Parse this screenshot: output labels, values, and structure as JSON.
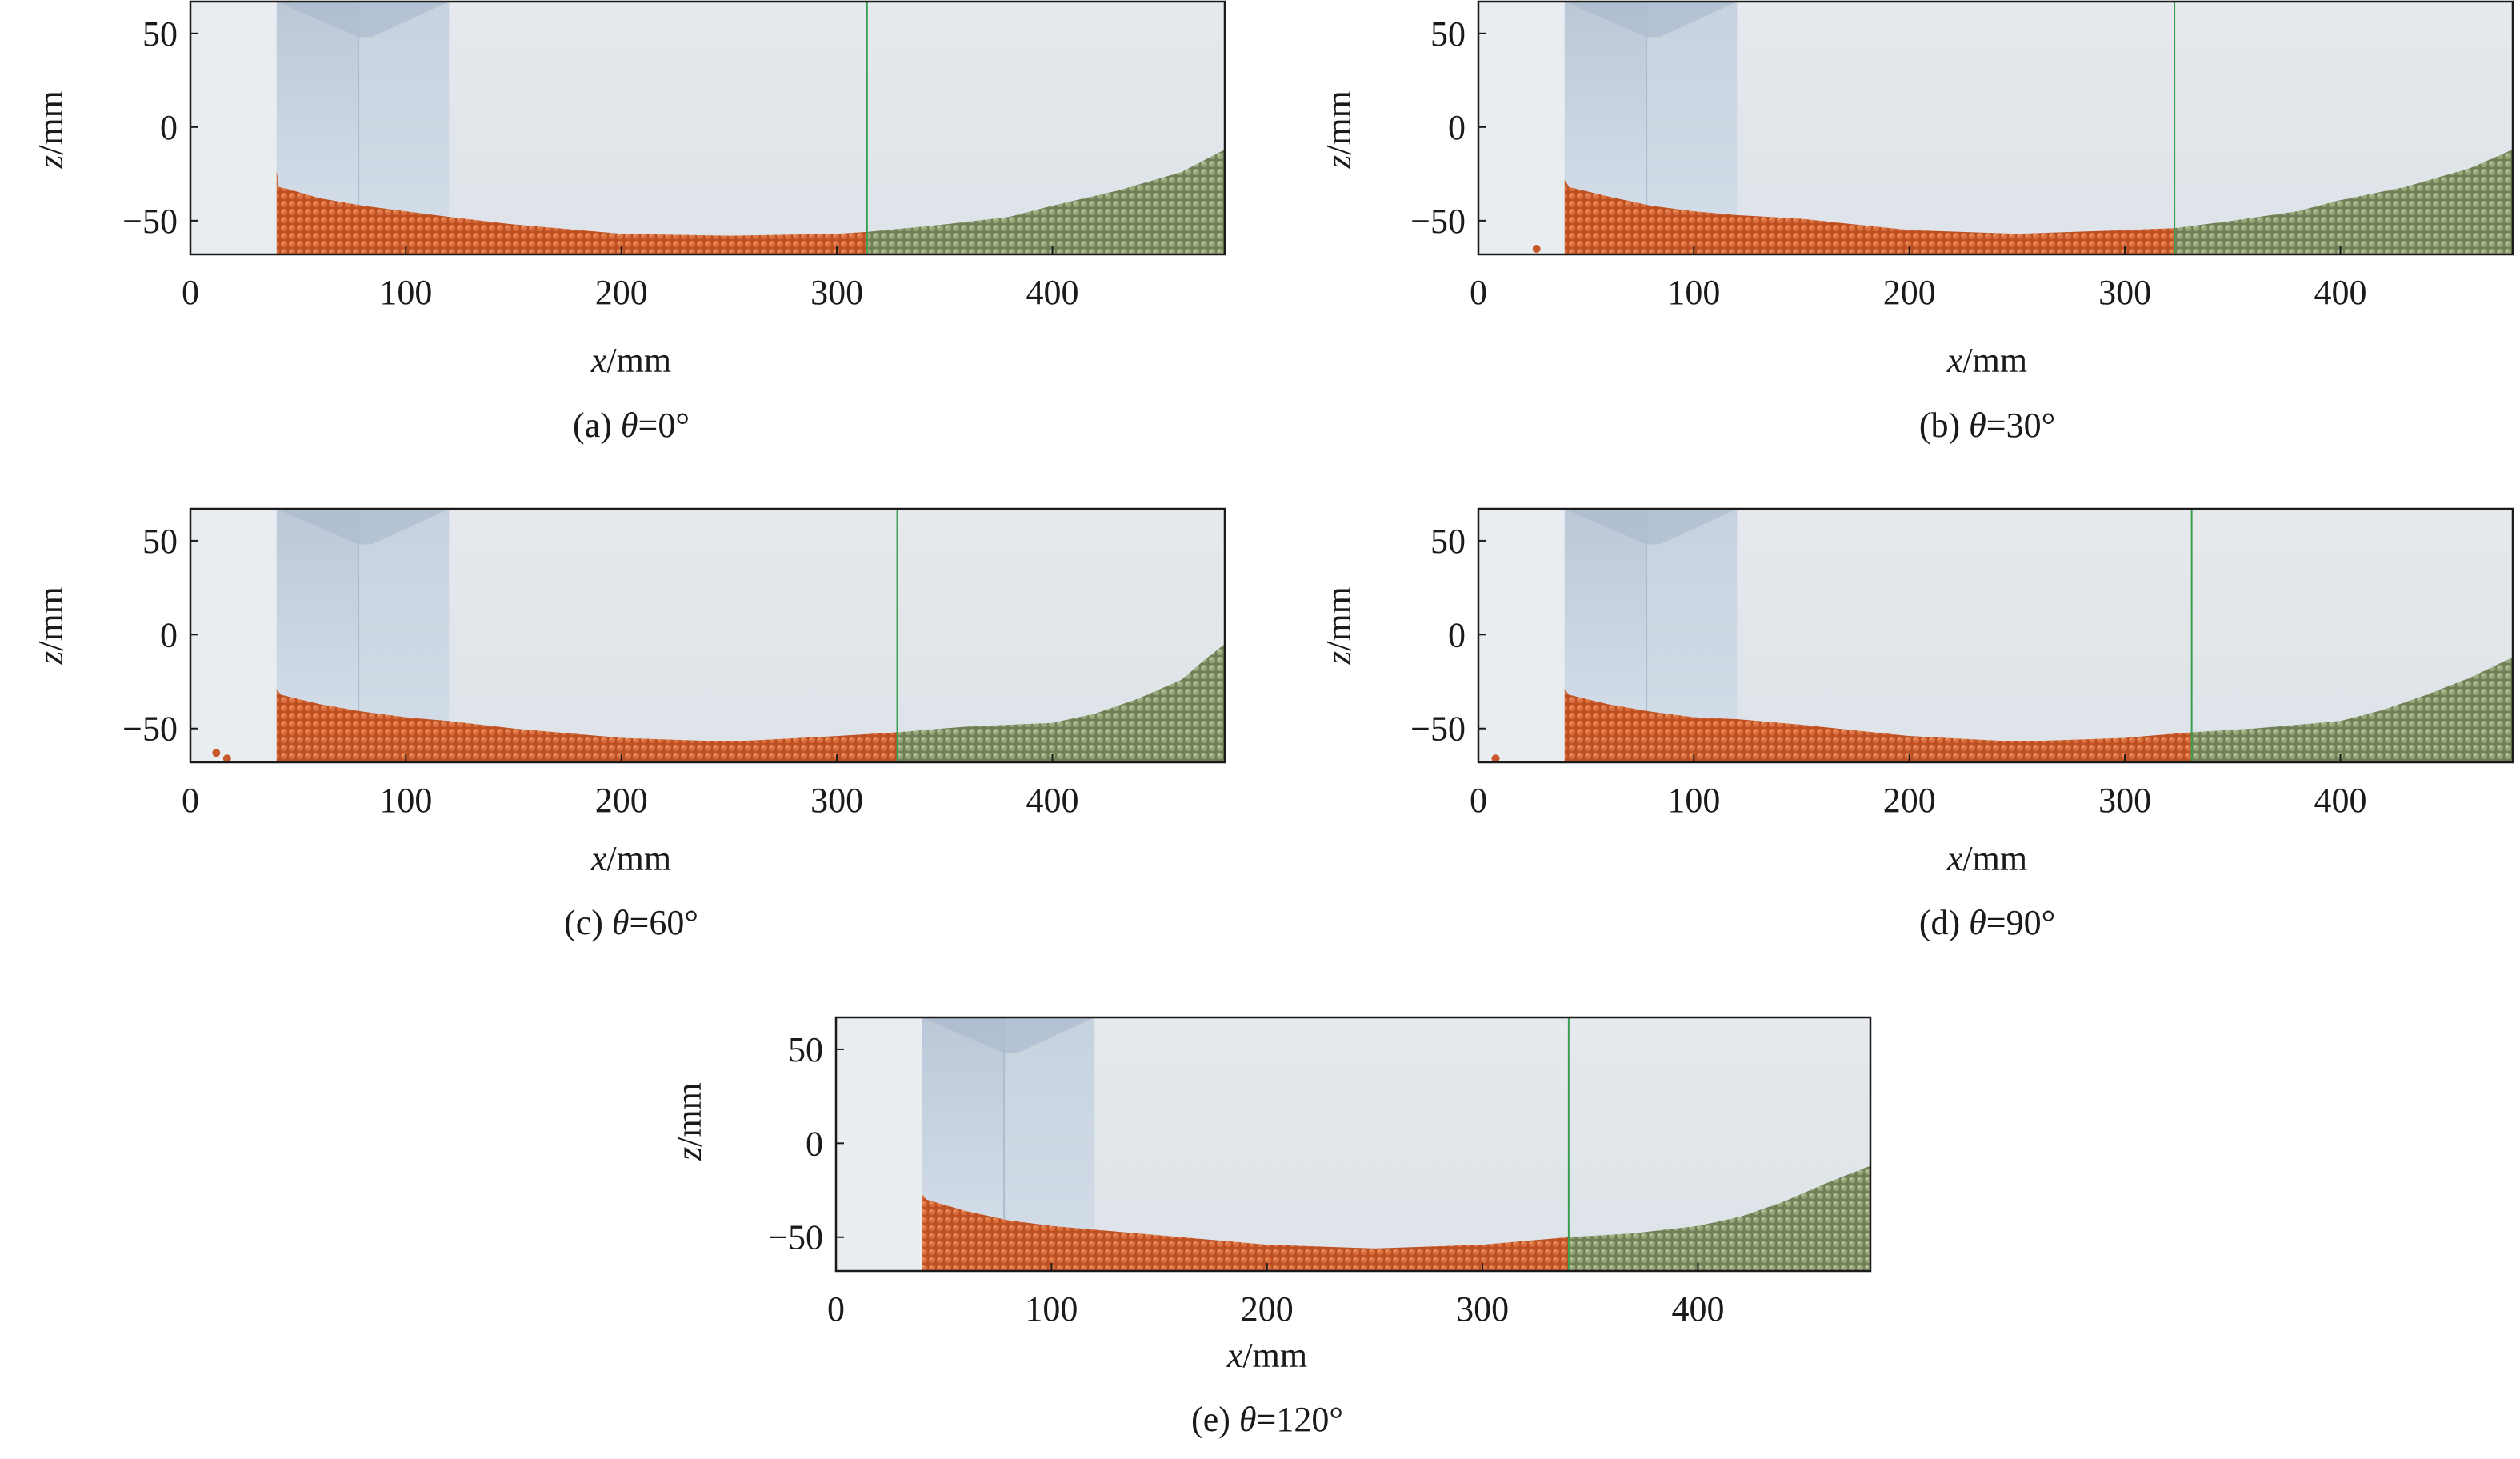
{
  "figure": {
    "panels": [
      {
        "caption": {
          "prefix": "(a) ",
          "var": "θ",
          "rest": "=0°"
        },
        "xlabel": {
          "var": "x",
          "unit": "/mm"
        },
        "ylabel": {
          "var": "z",
          "unit": "/mm"
        }
      },
      {
        "caption": {
          "prefix": "(b) ",
          "var": "θ",
          "rest": "=30°"
        },
        "xlabel": {
          "var": "x",
          "unit": "/mm"
        },
        "ylabel": {
          "var": "z",
          "unit": "/mm"
        }
      },
      {
        "caption": {
          "prefix": "(c) ",
          "var": "θ",
          "rest": "=60°"
        },
        "xlabel": {
          "var": "x",
          "unit": "/mm"
        },
        "ylabel": {
          "var": "z",
          "unit": "/mm"
        }
      },
      {
        "caption": {
          "prefix": "(d) ",
          "var": "θ",
          "rest": "=90°"
        },
        "xlabel": {
          "var": "x",
          "unit": "/mm"
        },
        "ylabel": {
          "var": "z",
          "unit": "/mm"
        }
      },
      {
        "caption": {
          "prefix": "(e) ",
          "var": "θ",
          "rest": "=120°"
        },
        "xlabel": {
          "var": "x",
          "unit": "/mm"
        },
        "ylabel": {
          "var": "z",
          "unit": "/mm"
        }
      }
    ]
  },
  "chart_data": [
    {
      "type": "area",
      "caption": "(a) θ=0°",
      "xlabel": "x/mm",
      "ylabel": "z/mm",
      "xlim": [
        0,
        480
      ],
      "ylim": [
        -68,
        67
      ],
      "xticks": [
        0,
        100,
        200,
        300,
        400
      ],
      "yticks": [
        -50,
        0,
        50
      ],
      "grid": false,
      "colors": {
        "orange": "#c8582a",
        "green": "#87976a",
        "background": "#e3e7ec",
        "boundary_line": "#3aa050",
        "inlet": "#b8c7d8"
      },
      "boundary_x": 314,
      "inlet_x": [
        40,
        120
      ],
      "orange_surface": {
        "x": [
          40,
          41,
          45,
          60,
          80,
          100,
          120,
          150,
          200,
          250,
          300,
          314
        ],
        "z": [
          -23,
          -32,
          -33,
          -38,
          -42,
          -45,
          -48,
          -52,
          -57,
          -58,
          -57,
          -56
        ]
      },
      "green_surface": {
        "x": [
          314,
          350,
          380,
          400,
          430,
          460,
          480
        ],
        "z": [
          -56,
          -52,
          -48,
          -42,
          -34,
          -24,
          -12
        ]
      },
      "stray_particles": []
    },
    {
      "type": "area",
      "caption": "(b) θ=30°",
      "xlabel": "x/mm",
      "ylabel": "z/mm",
      "xlim": [
        0,
        480
      ],
      "ylim": [
        -68,
        67
      ],
      "xticks": [
        0,
        100,
        200,
        300,
        400
      ],
      "yticks": [
        -50,
        0,
        50
      ],
      "grid": false,
      "colors": {
        "orange": "#c8582a",
        "green": "#87976a",
        "background": "#e3e7ec",
        "boundary_line": "#3aa050",
        "inlet": "#b8c7d8"
      },
      "boundary_x": 323,
      "inlet_x": [
        40,
        120
      ],
      "orange_surface": {
        "x": [
          40,
          42,
          60,
          80,
          100,
          120,
          150,
          200,
          250,
          300,
          323
        ],
        "z": [
          -28,
          -32,
          -37,
          -42,
          -45,
          -47,
          -49,
          -55,
          -57,
          -55,
          -54
        ]
      },
      "green_surface": {
        "x": [
          323,
          350,
          380,
          400,
          430,
          460,
          480
        ],
        "z": [
          -54,
          -50,
          -45,
          -39,
          -32,
          -22,
          -12
        ]
      },
      "stray_particles": [
        {
          "x": 27,
          "z": -65
        }
      ]
    },
    {
      "type": "area",
      "caption": "(c) θ=60°",
      "xlabel": "x/mm",
      "ylabel": "z/mm",
      "xlim": [
        0,
        480
      ],
      "ylim": [
        -68,
        67
      ],
      "xticks": [
        0,
        100,
        200,
        300,
        400
      ],
      "yticks": [
        -50,
        0,
        50
      ],
      "grid": false,
      "colors": {
        "orange": "#c8582a",
        "green": "#87976a",
        "background": "#e3e7ec",
        "boundary_line": "#3aa050",
        "inlet": "#b8c7d8"
      },
      "boundary_x": 328,
      "inlet_x": [
        40,
        120
      ],
      "orange_surface": {
        "x": [
          40,
          42,
          60,
          80,
          100,
          120,
          150,
          200,
          250,
          300,
          328
        ],
        "z": [
          -29,
          -32,
          -37,
          -41,
          -44,
          -46,
          -50,
          -55,
          -57,
          -54,
          -52
        ]
      },
      "green_surface": {
        "x": [
          328,
          360,
          400,
          420,
          440,
          460,
          470,
          480
        ],
        "z": [
          -52,
          -49,
          -47,
          -42,
          -34,
          -24,
          -14,
          -5
        ]
      },
      "stray_particles": [
        {
          "x": 12,
          "z": -63
        },
        {
          "x": 17,
          "z": -66
        }
      ]
    },
    {
      "type": "area",
      "caption": "(d) θ=90°",
      "xlabel": "x/mm",
      "ylabel": "z/mm",
      "xlim": [
        0,
        480
      ],
      "ylim": [
        -68,
        67
      ],
      "xticks": [
        0,
        100,
        200,
        300,
        400
      ],
      "yticks": [
        -50,
        0,
        50
      ],
      "grid": false,
      "colors": {
        "orange": "#c8582a",
        "green": "#87976a",
        "background": "#e3e7ec",
        "boundary_line": "#3aa050",
        "inlet": "#b8c7d8"
      },
      "boundary_x": 331,
      "inlet_x": [
        40,
        120
      ],
      "orange_surface": {
        "x": [
          40,
          42,
          60,
          80,
          100,
          120,
          150,
          200,
          250,
          300,
          331
        ],
        "z": [
          -29,
          -32,
          -37,
          -41,
          -44,
          -45,
          -48,
          -54,
          -57,
          -55,
          -52
        ]
      },
      "green_surface": {
        "x": [
          331,
          360,
          400,
          420,
          440,
          460,
          480
        ],
        "z": [
          -52,
          -50,
          -46,
          -40,
          -32,
          -23,
          -12
        ]
      },
      "stray_particles": [
        {
          "x": 8,
          "z": -66
        }
      ]
    },
    {
      "type": "area",
      "caption": "(e) θ=120°",
      "xlabel": "x/mm",
      "ylabel": "z/mm",
      "xlim": [
        0,
        480
      ],
      "ylim": [
        -68,
        67
      ],
      "xticks": [
        0,
        100,
        200,
        300,
        400
      ],
      "yticks": [
        -50,
        0,
        50
      ],
      "grid": false,
      "colors": {
        "orange": "#c8582a",
        "green": "#87976a",
        "background": "#e3e7ec",
        "boundary_line": "#3aa050",
        "inlet": "#b8c7d8"
      },
      "boundary_x": 340,
      "inlet_x": [
        40,
        120
      ],
      "orange_surface": {
        "x": [
          40,
          42,
          60,
          80,
          100,
          120,
          150,
          200,
          250,
          300,
          340
        ],
        "z": [
          -27,
          -30,
          -36,
          -41,
          -44,
          -46,
          -49,
          -54,
          -56,
          -54,
          -50
        ]
      },
      "green_surface": {
        "x": [
          340,
          370,
          400,
          420,
          440,
          460,
          480
        ],
        "z": [
          -50,
          -48,
          -44,
          -39,
          -31,
          -21,
          -12
        ]
      },
      "stray_particles": []
    }
  ]
}
